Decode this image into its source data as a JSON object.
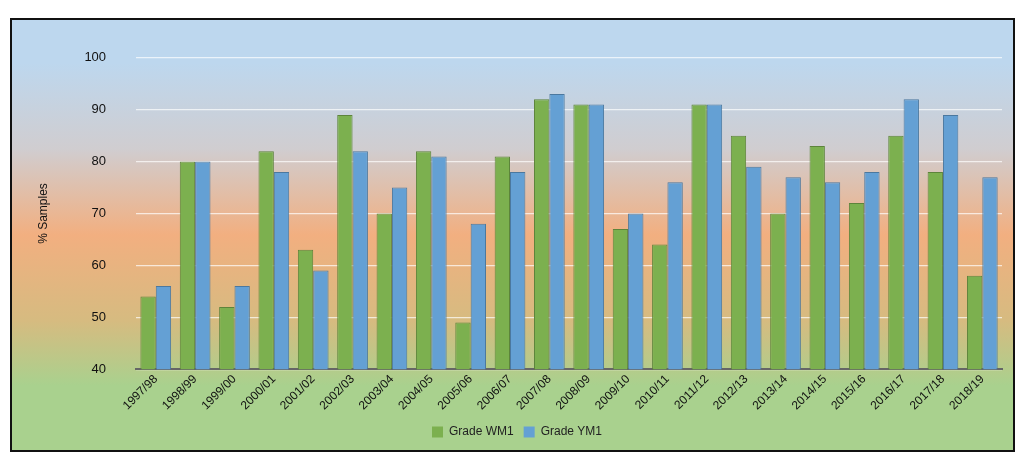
{
  "chart_data": {
    "type": "bar",
    "ylabel": "% Samples",
    "categories": [
      "1997/98",
      "1998/99",
      "1999/00",
      "2000/01",
      "2001/02",
      "2002/03",
      "2003/04",
      "2004/05",
      "2005/06",
      "2006/07",
      "2007/08",
      "2008/09",
      "2009/10",
      "2010/11",
      "2011/12",
      "2012/13",
      "2013/14",
      "2014/15",
      "2015/16",
      "2016/17",
      "2017/18",
      "2018/19"
    ],
    "series": [
      {
        "name": "Grade WM1",
        "color": "#7cb04f",
        "values": [
          54,
          80,
          52,
          82,
          63,
          89,
          70,
          82,
          49,
          81,
          92,
          91,
          67,
          64,
          91,
          85,
          70,
          83,
          72,
          85,
          78,
          58
        ]
      },
      {
        "name": "Grade YM1",
        "color": "#64a0d4",
        "values": [
          56,
          80,
          56,
          78,
          59,
          82,
          75,
          81,
          68,
          78,
          93,
          91,
          70,
          76,
          91,
          79,
          77,
          76,
          78,
          92,
          89,
          77
        ]
      }
    ],
    "ylim": [
      40,
      100
    ],
    "yticks": [
      40,
      50,
      60,
      70,
      80,
      90,
      100
    ],
    "grid": "y",
    "legend": "bottom"
  }
}
